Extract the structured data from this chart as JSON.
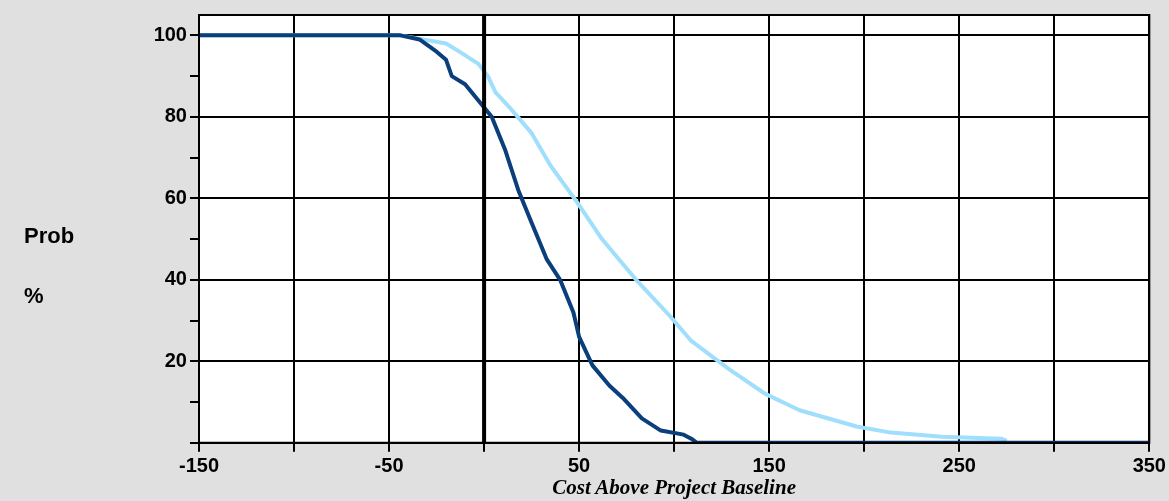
{
  "chart_data": {
    "type": "line",
    "xlabel": "Cost Above Project Baseline",
    "ylabel": "Prob\n%",
    "xlim": [
      -150,
      350
    ],
    "ylim": [
      0,
      105
    ],
    "xticks": [
      -150,
      {
        "value": -100,
        "label": null
      },
      -50,
      {
        "value": 0,
        "label": null
      },
      50,
      {
        "value": 100,
        "label": null
      },
      150,
      {
        "value": 200,
        "label": null
      },
      250,
      {
        "value": 300,
        "label": null
      },
      350
    ],
    "yticks": [
      {
        "value": 0,
        "label": null
      },
      {
        "value": 10,
        "label": null
      },
      20,
      {
        "value": 30,
        "label": null
      },
      40,
      {
        "value": 50,
        "label": null
      },
      60,
      {
        "value": 70,
        "label": null
      },
      80,
      {
        "value": 90,
        "label": null
      },
      100
    ],
    "grid": true,
    "legend": false,
    "marker": "none",
    "line_style": "solid",
    "ref_lines": [
      {
        "axis": "x",
        "value": 0,
        "color": "#000000"
      }
    ],
    "series": [
      {
        "color": "#0b3f7c",
        "x": [
          -150,
          -44,
          -34,
          -25,
          -20,
          -17,
          -10,
          -3,
          4,
          11,
          18,
          25,
          33,
          40,
          47,
          50,
          57,
          66,
          73,
          83,
          93,
          105,
          109,
          112,
          350
        ],
        "values": [
          100,
          100,
          99,
          96,
          94,
          90,
          88,
          84,
          80,
          72,
          62,
          54,
          45,
          40,
          32,
          26,
          19,
          14,
          11,
          6,
          3,
          2,
          1,
          0,
          0
        ]
      },
      {
        "color": "#9fdffc",
        "x": [
          -150,
          -44,
          -20,
          -13,
          -3,
          2,
          6,
          14,
          25,
          35,
          49,
          62,
          80,
          98,
          109,
          129,
          148,
          166,
          196,
          214,
          241,
          272,
          275
        ],
        "values": [
          100,
          100,
          98,
          96,
          93,
          90,
          86,
          82,
          76,
          68,
          59,
          50,
          40,
          31,
          25,
          18,
          12,
          8,
          4,
          2.5,
          1.5,
          1,
          0.5
        ]
      }
    ]
  }
}
